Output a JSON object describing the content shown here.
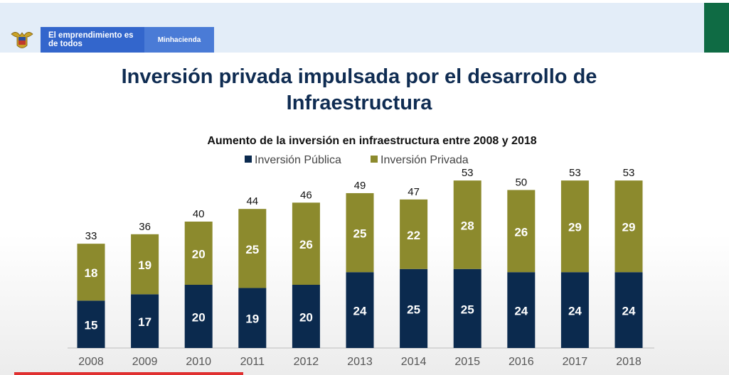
{
  "header": {
    "slogan": "El emprendimiento es de todos",
    "ministry": "Minhacienda"
  },
  "slide_title": "Inversión privada impulsada por el desarrollo de Infraestructura",
  "colors": {
    "publica": "#0b2a4e",
    "privada": "#8c8a2d",
    "title": "#0f2c52",
    "header_band": "#e3edf8",
    "accent_green": "#0f6b44"
  },
  "chart_data": {
    "type": "bar",
    "stacked": true,
    "title": "Aumento de la inversión en infraestructura entre 2008 y 2018",
    "categories": [
      "2008",
      "2009",
      "2010",
      "2011",
      "2012",
      "2013",
      "2014",
      "2015",
      "2016",
      "2017",
      "2018"
    ],
    "series": [
      {
        "name": "Inversión Pública",
        "values": [
          15,
          17,
          20,
          19,
          20,
          24,
          25,
          25,
          24,
          24,
          24
        ]
      },
      {
        "name": "Inversión Privada",
        "values": [
          18,
          19,
          20,
          25,
          26,
          25,
          22,
          28,
          26,
          29,
          29
        ]
      }
    ],
    "totals": [
      33,
      36,
      40,
      44,
      46,
      49,
      47,
      53,
      50,
      53,
      53
    ],
    "legend_position": "top-center",
    "grid": false,
    "xlabel": "",
    "ylabel": ""
  }
}
